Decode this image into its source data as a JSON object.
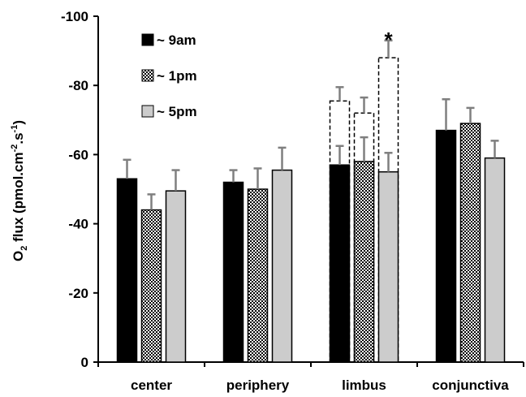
{
  "chart_data": {
    "type": "bar",
    "ylabel_parts": [
      "O",
      "2",
      " flux (pmol.cm",
      "-2",
      ".s",
      "-1",
      ")"
    ],
    "ylim": [
      0,
      -100
    ],
    "yticks": [
      "-100",
      "-80",
      "-60",
      "-40",
      "-20",
      "0"
    ],
    "ytick_values": [
      -100,
      -80,
      -60,
      -40,
      -20,
      0
    ],
    "categories": [
      "center",
      "periphery",
      "limbus",
      "conjunctiva"
    ],
    "series": [
      {
        "name": "~ 9am",
        "values": [
          -53,
          -52,
          -57,
          -67
        ],
        "errors": [
          5.5,
          3.5,
          5.5,
          9
        ],
        "fill": "#000000",
        "pattern": "solid"
      },
      {
        "name": "~ 1pm",
        "values": [
          -44,
          -50,
          -58,
          -69
        ],
        "errors": [
          4.5,
          6,
          7,
          4.5
        ],
        "fill": "#ffffff",
        "pattern": "checker"
      },
      {
        "name": "~ 5pm",
        "values": [
          -49.5,
          -55.5,
          -55,
          -59
        ],
        "errors": [
          6,
          6.5,
          5.5,
          5
        ],
        "fill": "#cccccc",
        "pattern": "solid"
      }
    ],
    "limbus_dashed": {
      "values": [
        -75.5,
        -72,
        -88
      ],
      "errors": [
        4,
        4.5,
        5
      ]
    },
    "significance_marker": "*",
    "legend_position": "top-left",
    "grid": false
  }
}
